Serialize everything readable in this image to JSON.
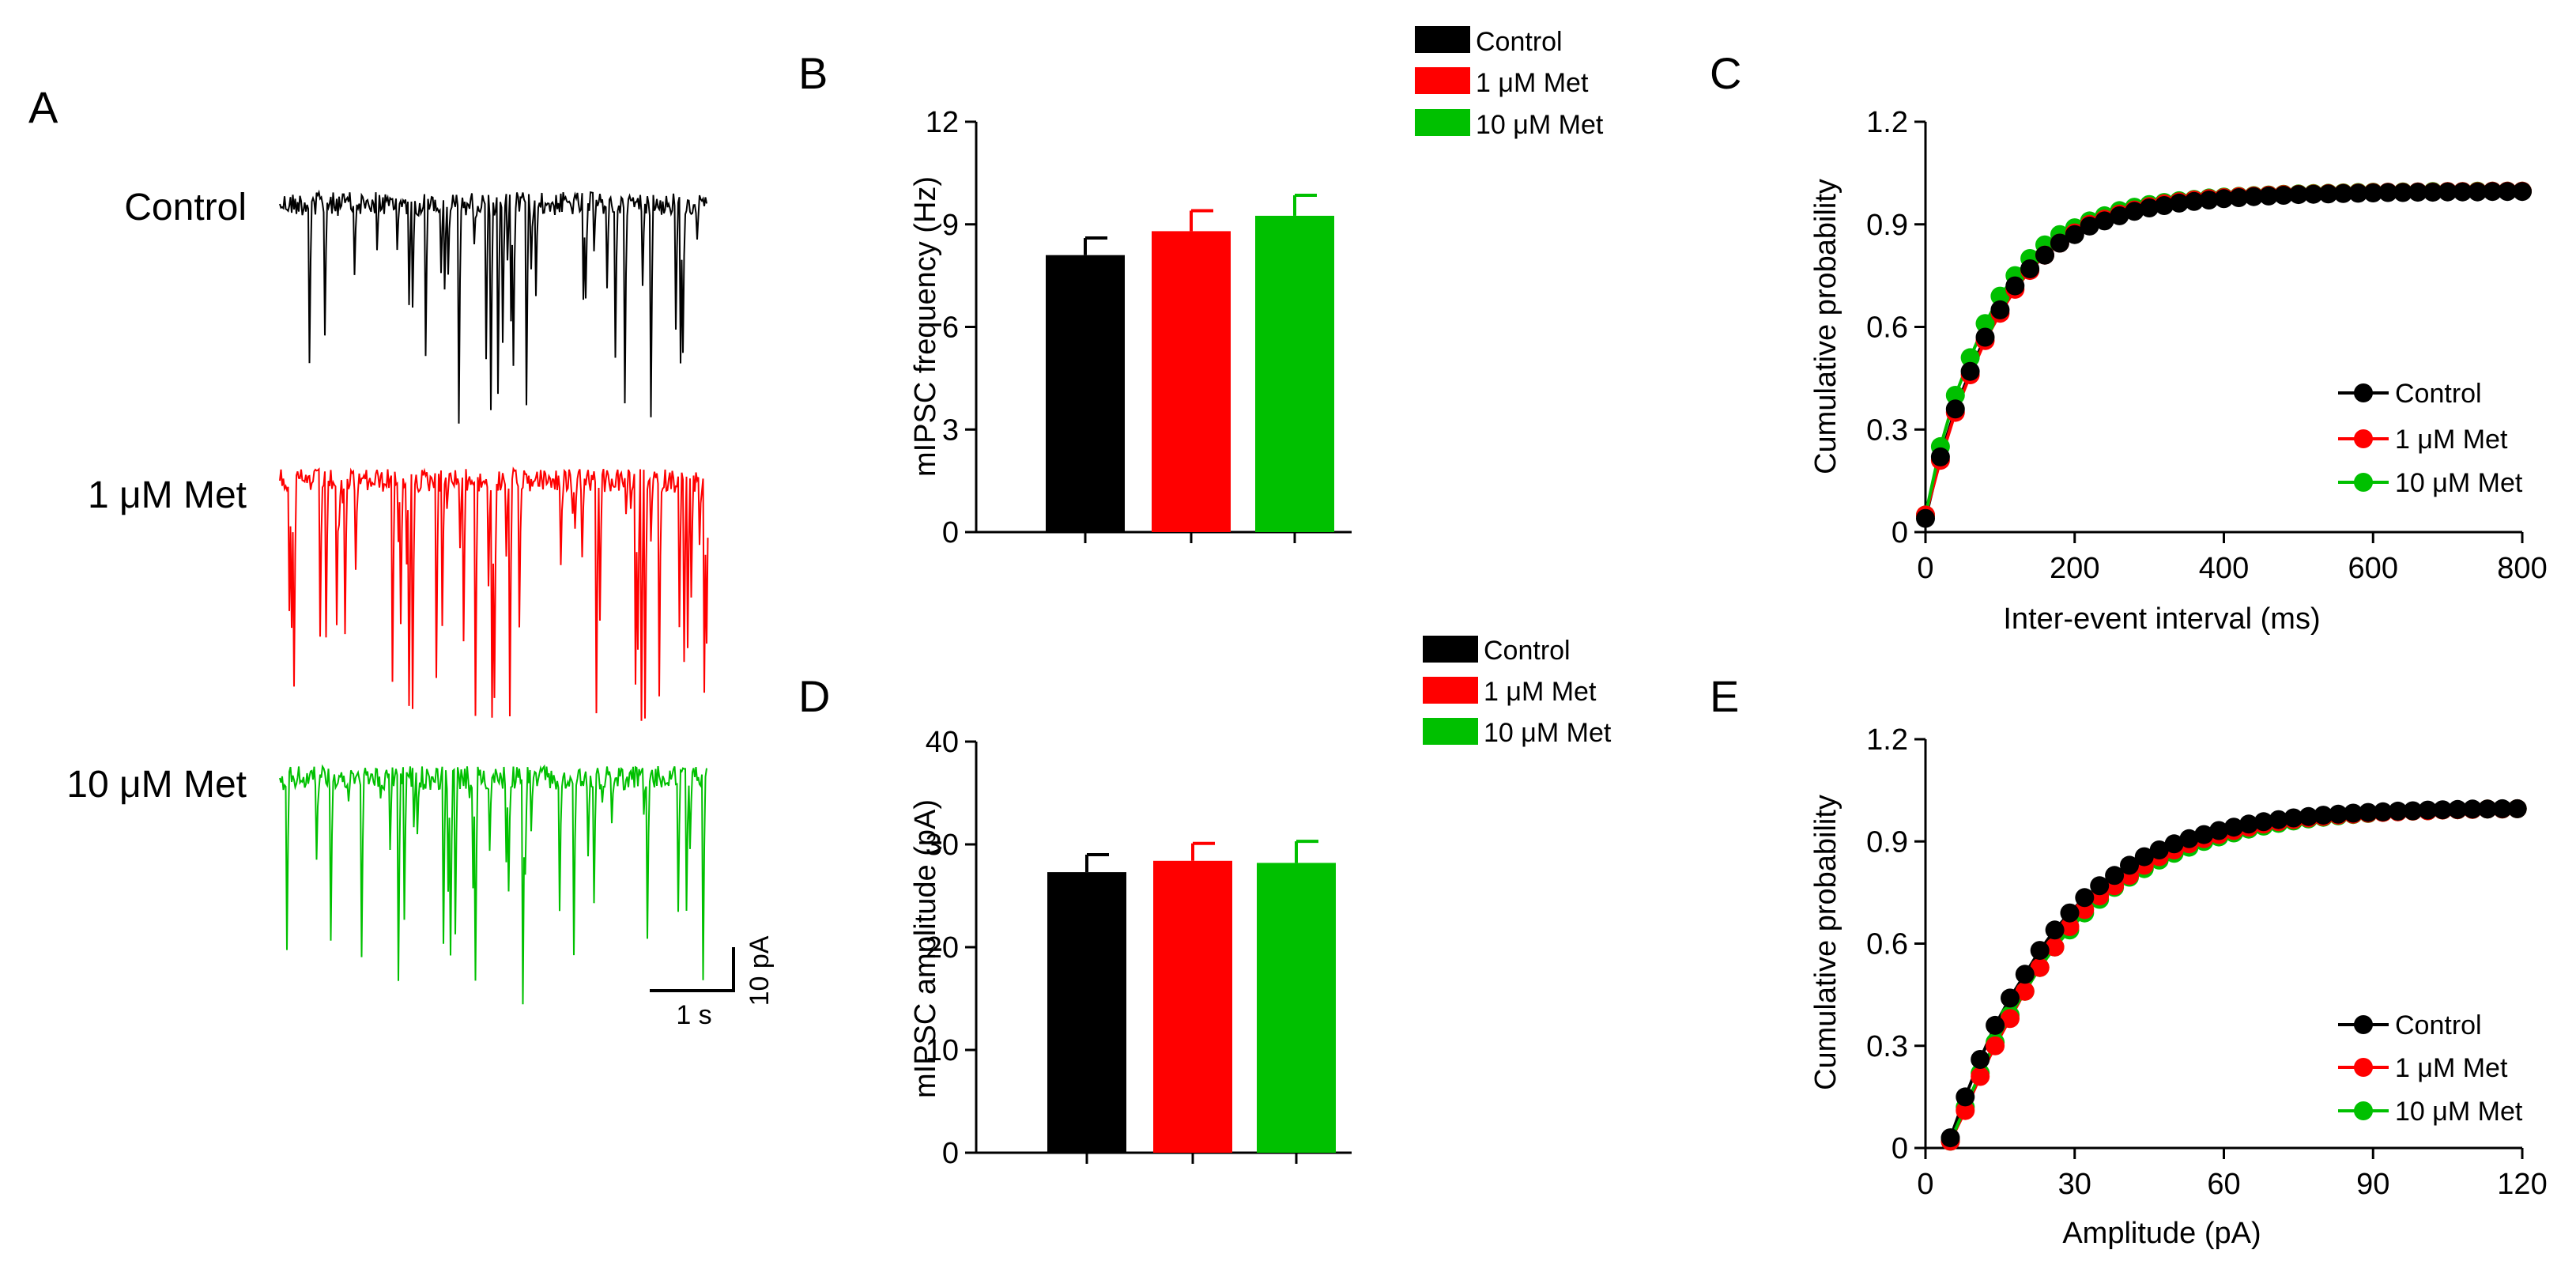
{
  "colors": {
    "control": "#000000",
    "met1": "#ff0000",
    "met10": "#00c000"
  },
  "panel_a": {
    "letter": "A",
    "trace_labels": [
      "Control",
      "1 μM Met",
      "10 μM Met"
    ],
    "scale_time": "1 s",
    "scale_current": "10 pA"
  },
  "chart_data": [
    {
      "panel": "B",
      "type": "bar",
      "categories": [
        "Control",
        "1 μM Met",
        "10 μM Met"
      ],
      "values": [
        8.1,
        8.8,
        9.25
      ],
      "errors": [
        0.5,
        0.6,
        0.6
      ],
      "ylabel": "mIPSC frequency (Hz)",
      "xlabel": "",
      "ylim": [
        0,
        12
      ],
      "yticks": [
        "0",
        "3",
        "6",
        "9",
        "12"
      ],
      "legend": [
        "Control",
        "1 μM Met",
        "10 μM Met"
      ],
      "legend_position": "top"
    },
    {
      "panel": "C",
      "type": "line",
      "xlabel": "Inter-event interval (ms)",
      "ylabel": "Cumulative probability",
      "xlim": [
        0,
        800
      ],
      "ylim": [
        0,
        1.2
      ],
      "xticks": [
        "0",
        "200",
        "400",
        "600",
        "800"
      ],
      "yticks": [
        "0",
        "0.3",
        "0.6",
        "0.9",
        "1.2"
      ],
      "legend_position": "lower-right",
      "x": [
        0,
        20,
        40,
        60,
        80,
        100,
        120,
        140,
        160,
        180,
        200,
        220,
        240,
        260,
        280,
        300,
        320,
        340,
        360,
        380,
        400,
        420,
        440,
        460,
        480,
        500,
        520,
        540,
        560,
        580,
        600,
        620,
        640,
        660,
        680,
        700,
        720,
        740,
        760,
        780,
        800
      ],
      "series": [
        {
          "name": "Control",
          "values": [
            0.04,
            0.22,
            0.36,
            0.47,
            0.57,
            0.65,
            0.72,
            0.77,
            0.81,
            0.845,
            0.87,
            0.895,
            0.91,
            0.925,
            0.938,
            0.948,
            0.955,
            0.962,
            0.967,
            0.971,
            0.975,
            0.978,
            0.981,
            0.983,
            0.985,
            0.987,
            0.988,
            0.989,
            0.99,
            0.991,
            0.992,
            0.993,
            0.993,
            0.994,
            0.994,
            0.995,
            0.995,
            0.995,
            0.996,
            0.996,
            0.996
          ]
        },
        {
          "name": "1 μM Met",
          "values": [
            0.05,
            0.21,
            0.35,
            0.46,
            0.56,
            0.64,
            0.71,
            0.765,
            0.81,
            0.845,
            0.875,
            0.9,
            0.915,
            0.93,
            0.942,
            0.952,
            0.96,
            0.966,
            0.971,
            0.975,
            0.978,
            0.981,
            0.983,
            0.985,
            0.987,
            0.988,
            0.989,
            0.99,
            0.991,
            0.992,
            0.993,
            0.994,
            0.994,
            0.995,
            0.995,
            0.996,
            0.996,
            0.996,
            0.997,
            0.997,
            0.997
          ]
        },
        {
          "name": "10 μM Met",
          "values": [
            0.05,
            0.25,
            0.4,
            0.51,
            0.61,
            0.69,
            0.75,
            0.8,
            0.84,
            0.87,
            0.89,
            0.91,
            0.925,
            0.94,
            0.95,
            0.958,
            0.964,
            0.969,
            0.973,
            0.977,
            0.98,
            0.982,
            0.984,
            0.986,
            0.988,
            0.989,
            0.99,
            0.991,
            0.992,
            0.993,
            0.994,
            0.994,
            0.995,
            0.995,
            0.996,
            0.996,
            0.996,
            0.997,
            0.997,
            0.997,
            0.997
          ]
        }
      ]
    },
    {
      "panel": "D",
      "type": "bar",
      "categories": [
        "Control",
        "1 μM Met",
        "10 μM Met"
      ],
      "values": [
        27.3,
        28.4,
        28.2
      ],
      "errors": [
        1.7,
        1.7,
        2.1
      ],
      "ylabel": "mIPSC amplitude (pA)",
      "xlabel": "",
      "ylim": [
        0,
        40
      ],
      "yticks": [
        "0",
        "10",
        "20",
        "30",
        "40"
      ],
      "legend": [
        "Control",
        "1 μM Met",
        "10 μM Met"
      ],
      "legend_position": "top"
    },
    {
      "panel": "E",
      "type": "line",
      "xlabel": "Amplitude  (pA)",
      "ylabel": "Cumulative probability",
      "xlim": [
        0,
        120
      ],
      "ylim": [
        0,
        1.2
      ],
      "xticks": [
        "0",
        "30",
        "60",
        "90",
        "120"
      ],
      "yticks": [
        "0",
        "0.3",
        "0.6",
        "0.9",
        "1.2"
      ],
      "legend_position": "lower-right",
      "x": [
        5,
        8,
        11,
        14,
        17,
        20,
        23,
        26,
        29,
        32,
        35,
        38,
        41,
        44,
        47,
        50,
        53,
        56,
        59,
        62,
        65,
        68,
        71,
        74,
        77,
        80,
        83,
        86,
        89,
        92,
        95,
        98,
        101,
        104,
        107,
        110,
        113,
        116,
        119
      ],
      "series": [
        {
          "name": "Control",
          "values": [
            0.03,
            0.15,
            0.26,
            0.36,
            0.44,
            0.51,
            0.58,
            0.64,
            0.69,
            0.735,
            0.77,
            0.8,
            0.83,
            0.855,
            0.875,
            0.893,
            0.908,
            0.92,
            0.932,
            0.942,
            0.951,
            0.958,
            0.964,
            0.969,
            0.973,
            0.977,
            0.98,
            0.983,
            0.985,
            0.987,
            0.989,
            0.99,
            0.992,
            0.993,
            0.994,
            0.995,
            0.995,
            0.996,
            0.996
          ]
        },
        {
          "name": "1 μM Met",
          "values": [
            0.02,
            0.11,
            0.21,
            0.3,
            0.38,
            0.46,
            0.53,
            0.59,
            0.65,
            0.7,
            0.74,
            0.77,
            0.8,
            0.83,
            0.855,
            0.875,
            0.893,
            0.908,
            0.92,
            0.932,
            0.942,
            0.951,
            0.958,
            0.964,
            0.969,
            0.973,
            0.977,
            0.98,
            0.983,
            0.985,
            0.987,
            0.989,
            0.99,
            0.992,
            0.993,
            0.994,
            0.995,
            0.995,
            0.996
          ]
        },
        {
          "name": "10 μM Met",
          "values": [
            0.02,
            0.12,
            0.22,
            0.31,
            0.39,
            0.46,
            0.53,
            0.59,
            0.64,
            0.69,
            0.73,
            0.765,
            0.795,
            0.82,
            0.845,
            0.865,
            0.883,
            0.9,
            0.913,
            0.925,
            0.936,
            0.945,
            0.953,
            0.96,
            0.966,
            0.971,
            0.975,
            0.979,
            0.982,
            0.985,
            0.987,
            0.989,
            0.99,
            0.992,
            0.993,
            0.994,
            0.995,
            0.995,
            0.996
          ]
        }
      ]
    }
  ]
}
